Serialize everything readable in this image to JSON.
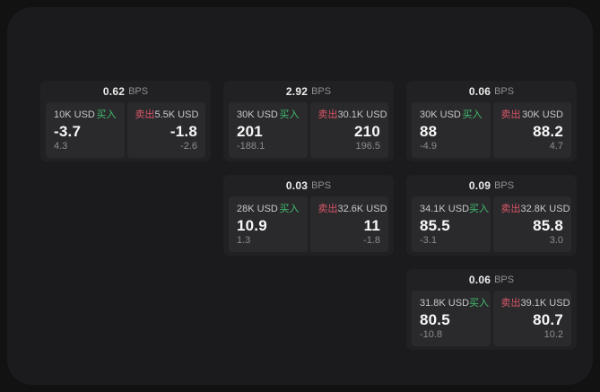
{
  "labels": {
    "bps_unit": "BPS",
    "buy": "买入",
    "sell": "卖出"
  },
  "colors": {
    "buy": "#42bd70",
    "sell": "#d95668",
    "panel_bg": "#1b1b1d",
    "card_bg": "#212123",
    "pane_bg": "#2a2a2c"
  },
  "cards": [
    {
      "bps": "0.62",
      "buy": {
        "size": "10K USD",
        "price": "-3.7",
        "sub": "4.3"
      },
      "sell": {
        "size": "5.5K USD",
        "price": "-1.8",
        "sub": "-2.6"
      }
    },
    {
      "bps": "2.92",
      "buy": {
        "size": "30K USD",
        "price": "201",
        "sub": "-188.1"
      },
      "sell": {
        "size": "30.1K USD",
        "price": "210",
        "sub": "196.5"
      }
    },
    {
      "bps": "0.06",
      "buy": {
        "size": "30K USD",
        "price": "88",
        "sub": "-4.9"
      },
      "sell": {
        "size": "30K USD",
        "price": "88.2",
        "sub": "4.7"
      }
    },
    {
      "bps": "0.03",
      "buy": {
        "size": "28K USD",
        "price": "10.9",
        "sub": "1.3"
      },
      "sell": {
        "size": "32.6K USD",
        "price": "11",
        "sub": "-1.8"
      }
    },
    {
      "bps": "0.09",
      "buy": {
        "size": "34.1K USD",
        "price": "85.5",
        "sub": "-3.1"
      },
      "sell": {
        "size": "32.8K USD",
        "price": "85.8",
        "sub": "3.0"
      }
    },
    {
      "bps": "0.06",
      "buy": {
        "size": "31.8K USD",
        "price": "80.5",
        "sub": "-10.8"
      },
      "sell": {
        "size": "39.1K USD",
        "price": "80.7",
        "sub": "10.2"
      }
    }
  ]
}
